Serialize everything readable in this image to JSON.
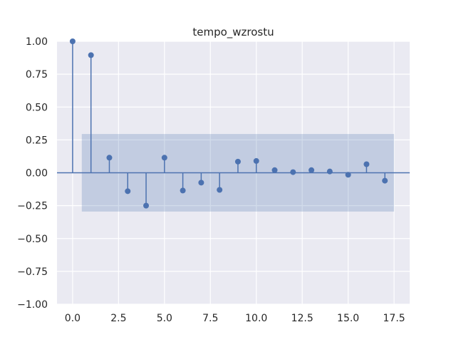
{
  "chart_data": {
    "type": "stem",
    "title": "tempo_wzrostu",
    "xlabel": "",
    "ylabel": "",
    "xlim": [
      -0.85,
      18.35
    ],
    "ylim": [
      -1.0,
      1.0
    ],
    "x_ticks": [
      0.0,
      2.5,
      5.0,
      7.5,
      10.0,
      12.5,
      15.0,
      17.5
    ],
    "x_tick_labels": [
      "0.0",
      "2.5",
      "5.0",
      "7.5",
      "10.0",
      "12.5",
      "15.0",
      "17.5"
    ],
    "y_ticks": [
      1.0,
      0.75,
      0.5,
      0.25,
      0.0,
      -0.25,
      -0.5,
      -0.75,
      -1.0
    ],
    "y_tick_labels": [
      "1.00",
      "0.75",
      "0.50",
      "0.25",
      "0.00",
      "−0.25",
      "−0.50",
      "−0.75",
      "−1.00"
    ],
    "grid": true,
    "confidence_band": {
      "x_range": [
        0.5,
        17.5
      ],
      "upper": 0.295,
      "lower": -0.295
    },
    "lags": [
      0,
      1,
      2,
      3,
      4,
      5,
      6,
      7,
      8,
      9,
      10,
      11,
      12,
      13,
      14,
      15,
      16,
      17
    ],
    "values": [
      1.0,
      0.895,
      0.115,
      -0.14,
      -0.25,
      0.115,
      -0.135,
      -0.075,
      -0.13,
      0.085,
      0.09,
      0.02,
      0.005,
      0.02,
      0.01,
      -0.015,
      0.065,
      -0.06
    ],
    "colors": {
      "background": "#eaeaf2",
      "grid": "#ffffff",
      "series": "#4c72b0",
      "band": "#4c72b0"
    }
  }
}
